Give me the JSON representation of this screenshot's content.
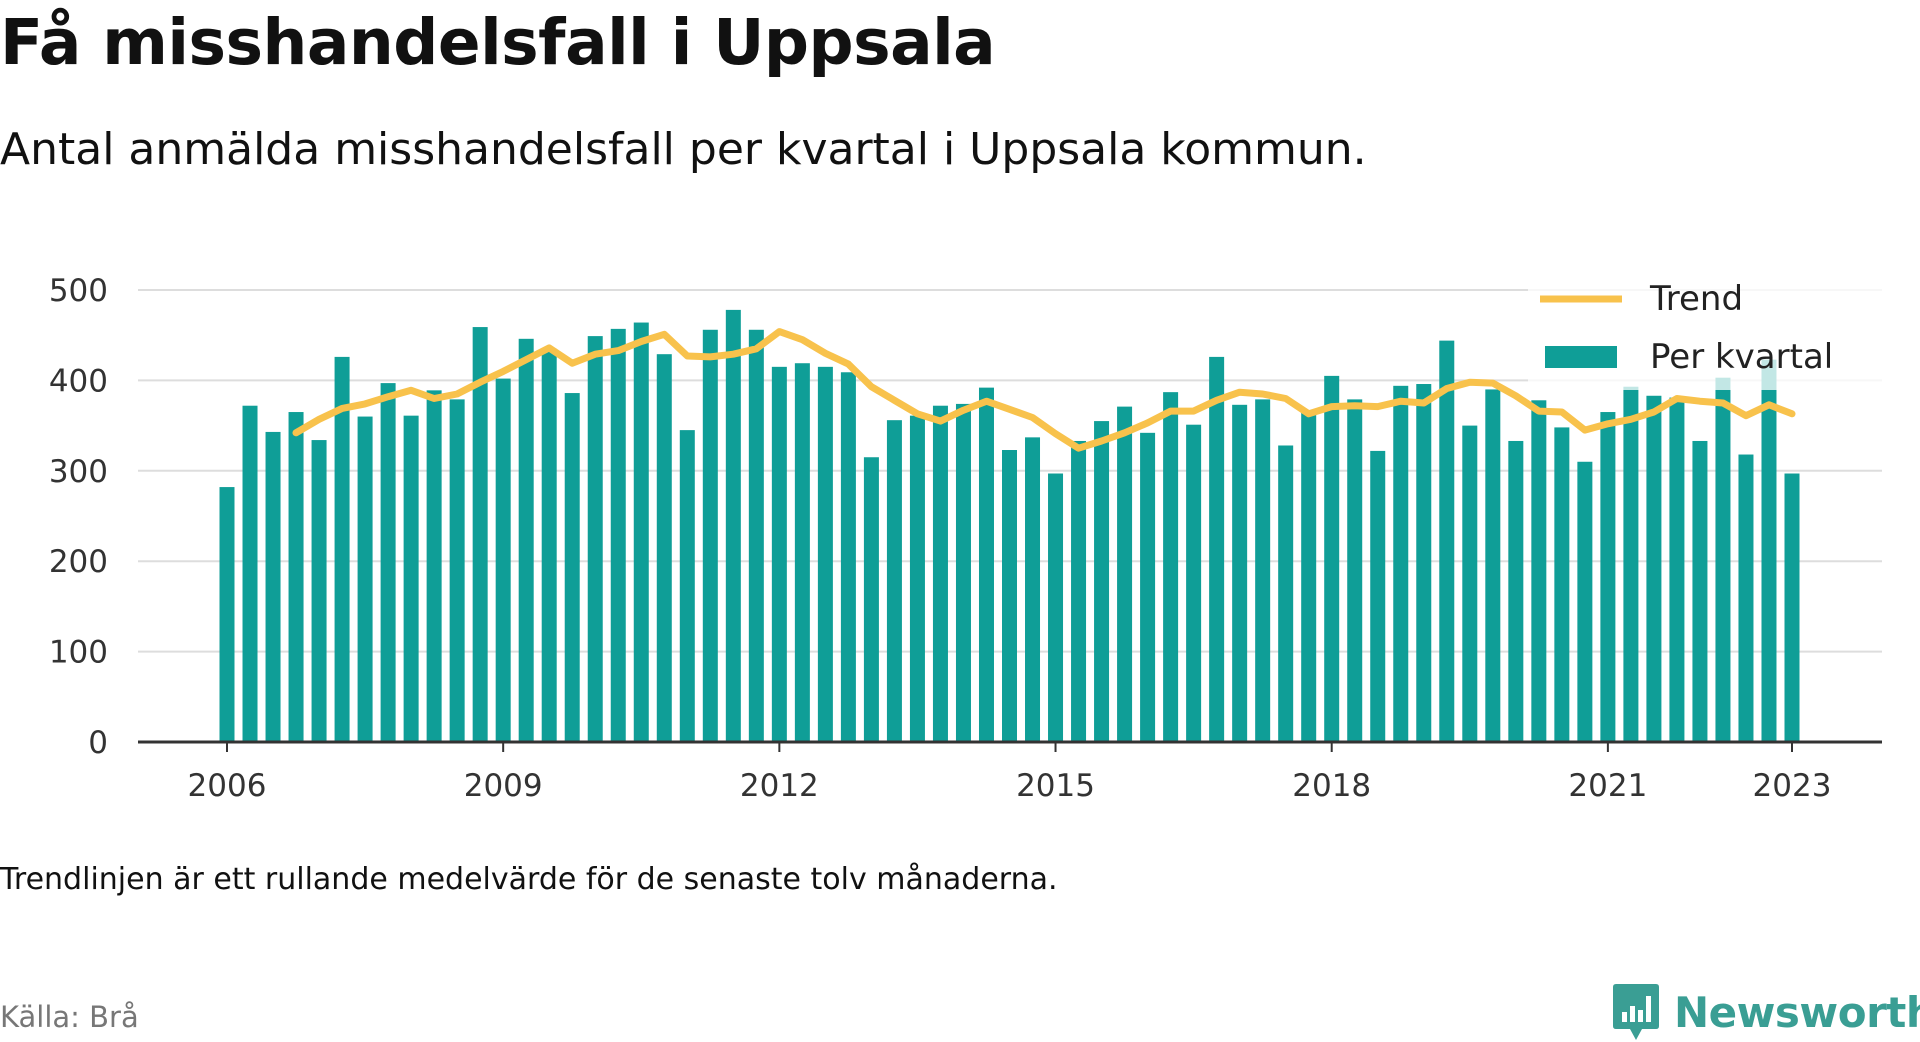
{
  "title": "Få misshandelsfall i Uppsala",
  "subtitle": "Antal anmälda misshandelsfall per kvartal i Uppsala kommun.",
  "note": "Trendlinjen är ett rullande medelvärde för de senaste tolv månaderna.",
  "source": "Källa: Brå",
  "logo_text": "Newsworthy",
  "colors": {
    "bar": "#0f9e97",
    "trend": "#f8c24c",
    "grid": "#dddddd",
    "axis": "#333333",
    "logo": "#3a9e94"
  },
  "chart_data": {
    "type": "bar",
    "x_tick_labels": [
      "2006",
      "2009",
      "2012",
      "2015",
      "2018",
      "2021",
      "2023"
    ],
    "ylim": [
      0,
      500
    ],
    "y_ticks": [
      0,
      100,
      200,
      300,
      400,
      500
    ],
    "grid": true,
    "legend_position": "top-right",
    "legend": [
      "Trend",
      "Per kvartal"
    ],
    "x_start": 2006.0,
    "x_step": 0.25,
    "series": [
      {
        "name": "Per kvartal",
        "type": "bar",
        "values": [
          282,
          372,
          343,
          365,
          334,
          426,
          360,
          397,
          361,
          389,
          379,
          459,
          402,
          446,
          435,
          386,
          449,
          457,
          464,
          429,
          345,
          456,
          478,
          456,
          415,
          419,
          415,
          409,
          315,
          356,
          361,
          372,
          374,
          392,
          323,
          337,
          297,
          333,
          355,
          371,
          342,
          387,
          351,
          426,
          373,
          379,
          328,
          367,
          405,
          379,
          322,
          394,
          396,
          444,
          350,
          390,
          333,
          378,
          348,
          310,
          365,
          393,
          383,
          381,
          333,
          403,
          318,
          423,
          297
        ]
      },
      {
        "name": "Trend",
        "type": "line",
        "x_start": 2006.75,
        "values": [
          342,
          357,
          369,
          374,
          382,
          389,
          380,
          385,
          398,
          410,
          423,
          436,
          419,
          429,
          433,
          443,
          451,
          427,
          426,
          429,
          435,
          454,
          445,
          430,
          418,
          393,
          378,
          363,
          355,
          367,
          377,
          368,
          359,
          341,
          325,
          333,
          342,
          353,
          366,
          366,
          378,
          387,
          385,
          380,
          363,
          371,
          372,
          371,
          377,
          375,
          391,
          398,
          397,
          383,
          366,
          365,
          345,
          352,
          357,
          365,
          380,
          377,
          375,
          361,
          373,
          363
        ]
      }
    ]
  }
}
